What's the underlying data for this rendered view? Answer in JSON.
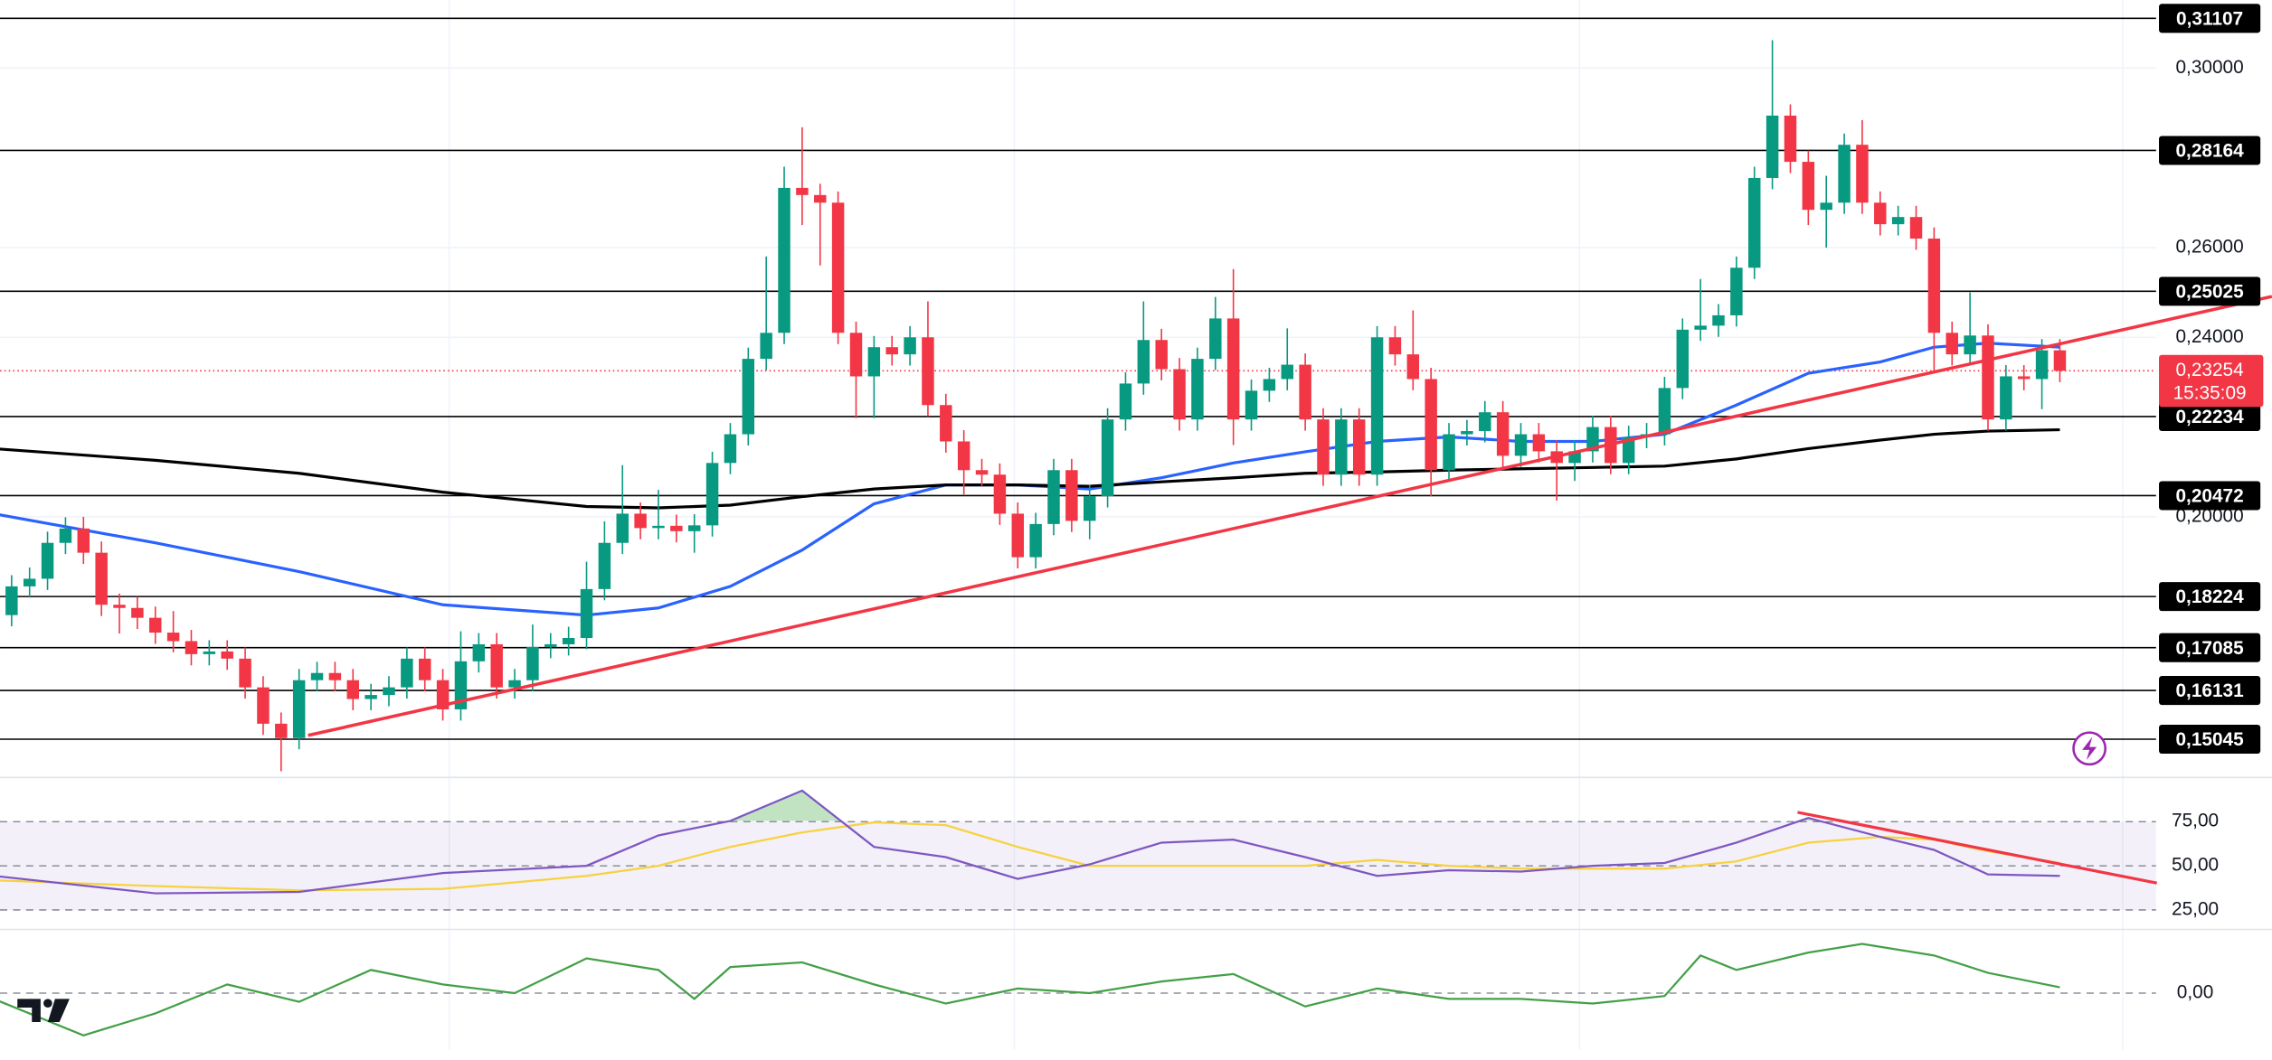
{
  "chart_data": [
    {
      "type": "candlestick",
      "up_color": "#089981",
      "down_color": "#f23645",
      "ylim": [
        0.14258,
        0.31516
      ],
      "yticks": [
        {
          "value": 0.3,
          "label": "0,30000"
        },
        {
          "value": 0.26,
          "label": "0,26000"
        },
        {
          "value": 0.24,
          "label": "0,24000"
        },
        {
          "value": 0.2,
          "label": "0,20000"
        }
      ],
      "grid": true,
      "open": [
        0.1781,
        0.1845,
        0.1862,
        0.1942,
        0.1974,
        0.192,
        0.1804,
        0.1797,
        0.1775,
        0.1742,
        0.1723,
        0.1694,
        0.17,
        0.1684,
        0.162,
        0.1539,
        0.1507,
        0.1636,
        0.1652,
        0.1636,
        0.1594,
        0.1603,
        0.162,
        0.1684,
        0.1636,
        0.1571,
        0.1678,
        0.1716,
        0.162,
        0.1636,
        0.171,
        0.1716,
        0.173,
        0.1839,
        0.1942,
        0.2007,
        0.1975,
        0.198,
        0.1968,
        0.1981,
        0.212,
        0.2184,
        0.2352,
        0.241,
        0.2733,
        0.2717,
        0.27,
        0.241,
        0.2313,
        0.2378,
        0.2362,
        0.24,
        0.2249,
        0.2168,
        0.2104,
        0.2094,
        0.2007,
        0.191,
        0.1984,
        0.2104,
        0.1991,
        0.2046,
        0.2217,
        0.2297,
        0.2394,
        0.2329,
        0.2217,
        0.2352,
        0.2442,
        0.2217,
        0.2281,
        0.2307,
        0.2339,
        0.2217,
        0.2094,
        0.2217,
        0.2094,
        0.24,
        0.2362,
        0.2307,
        0.2104,
        0.2184,
        0.2191,
        0.2233,
        0.2136,
        0.2184,
        0.2146,
        0.212,
        0.2146,
        0.22,
        0.212,
        0.2178,
        0.2184,
        0.2287,
        0.2417,
        0.2426,
        0.2449,
        0.2555,
        0.2755,
        0.2894,
        0.2791,
        0.2684,
        0.27,
        0.2829,
        0.27,
        0.2652,
        0.2668,
        0.262,
        0.241,
        0.2362,
        0.2404,
        0.2217,
        0.2313,
        0.2307,
        0.2371
      ],
      "high": [
        0.187,
        0.1887,
        0.1967,
        0.1999,
        0.2,
        0.1945,
        0.1829,
        0.1822,
        0.18,
        0.179,
        0.1748,
        0.1725,
        0.1725,
        0.1709,
        0.1645,
        0.1564,
        0.1661,
        0.1677,
        0.1677,
        0.1661,
        0.1628,
        0.1645,
        0.1709,
        0.1709,
        0.1661,
        0.1745,
        0.1741,
        0.1741,
        0.1661,
        0.176,
        0.1741,
        0.1755,
        0.19,
        0.199,
        0.2115,
        0.2032,
        0.206,
        0.2005,
        0.2006,
        0.2145,
        0.2209,
        0.2377,
        0.258,
        0.278,
        0.2868,
        0.2742,
        0.2725,
        0.2435,
        0.2403,
        0.2403,
        0.2425,
        0.248,
        0.2274,
        0.2193,
        0.2129,
        0.2119,
        0.2032,
        0.2009,
        0.2129,
        0.2129,
        0.2071,
        0.2242,
        0.2322,
        0.248,
        0.2419,
        0.2354,
        0.2377,
        0.249,
        0.2552,
        0.2306,
        0.2332,
        0.242,
        0.2364,
        0.2242,
        0.2242,
        0.2242,
        0.2425,
        0.2425,
        0.246,
        0.2332,
        0.2209,
        0.2216,
        0.2258,
        0.2258,
        0.2209,
        0.2209,
        0.2171,
        0.2171,
        0.2225,
        0.2225,
        0.2203,
        0.2209,
        0.2312,
        0.2442,
        0.253,
        0.2474,
        0.258,
        0.278,
        0.3062,
        0.2919,
        0.2816,
        0.276,
        0.2854,
        0.2884,
        0.2725,
        0.2693,
        0.2693,
        0.2645,
        0.2435,
        0.25,
        0.2429,
        0.2338,
        0.2338,
        0.2396,
        0.2396
      ],
      "low": [
        0.1756,
        0.182,
        0.1837,
        0.1917,
        0.1895,
        0.1779,
        0.174,
        0.175,
        0.1717,
        0.1698,
        0.1669,
        0.1669,
        0.1659,
        0.1595,
        0.1514,
        0.1433,
        0.1482,
        0.1611,
        0.1611,
        0.1569,
        0.1569,
        0.1578,
        0.1595,
        0.1611,
        0.1546,
        0.1546,
        0.1653,
        0.1595,
        0.1595,
        0.1611,
        0.1685,
        0.1691,
        0.1705,
        0.1814,
        0.1917,
        0.195,
        0.195,
        0.1943,
        0.192,
        0.1956,
        0.2095,
        0.2159,
        0.2327,
        0.2385,
        0.265,
        0.256,
        0.2385,
        0.222,
        0.222,
        0.2337,
        0.2337,
        0.2224,
        0.2143,
        0.205,
        0.2069,
        0.1982,
        0.1885,
        0.1885,
        0.1959,
        0.1966,
        0.195,
        0.2021,
        0.2192,
        0.2272,
        0.2304,
        0.2192,
        0.2192,
        0.2327,
        0.216,
        0.2192,
        0.2256,
        0.2282,
        0.2192,
        0.2069,
        0.2069,
        0.2069,
        0.2069,
        0.2337,
        0.2282,
        0.2046,
        0.2079,
        0.2159,
        0.2166,
        0.2111,
        0.2111,
        0.2121,
        0.2036,
        0.208,
        0.2121,
        0.2095,
        0.2095,
        0.2153,
        0.2159,
        0.2262,
        0.2392,
        0.2401,
        0.2424,
        0.253,
        0.273,
        0.2766,
        0.265,
        0.26,
        0.2675,
        0.2675,
        0.2627,
        0.2627,
        0.2595,
        0.232,
        0.2337,
        0.2337,
        0.2192,
        0.2192,
        0.2282,
        0.224,
        0.23
      ],
      "close": [
        0.1845,
        0.1862,
        0.1942,
        0.1974,
        0.192,
        0.1804,
        0.1797,
        0.1775,
        0.1742,
        0.1723,
        0.1694,
        0.17,
        0.1684,
        0.162,
        0.1539,
        0.1507,
        0.1636,
        0.1652,
        0.1636,
        0.1594,
        0.1603,
        0.162,
        0.1684,
        0.1636,
        0.1571,
        0.1678,
        0.1716,
        0.162,
        0.1636,
        0.171,
        0.1716,
        0.173,
        0.1839,
        0.1942,
        0.2007,
        0.1975,
        0.198,
        0.1968,
        0.1981,
        0.212,
        0.2184,
        0.2352,
        0.241,
        0.2733,
        0.2717,
        0.27,
        0.241,
        0.2313,
        0.2378,
        0.2362,
        0.24,
        0.2249,
        0.2168,
        0.2104,
        0.2094,
        0.2007,
        0.191,
        0.1984,
        0.2104,
        0.1991,
        0.2046,
        0.2217,
        0.2297,
        0.2394,
        0.2329,
        0.2217,
        0.2352,
        0.2442,
        0.2217,
        0.2281,
        0.2307,
        0.2339,
        0.2217,
        0.2094,
        0.2217,
        0.2094,
        0.24,
        0.2362,
        0.2307,
        0.2104,
        0.2184,
        0.2191,
        0.2233,
        0.2136,
        0.2184,
        0.2146,
        0.212,
        0.2146,
        0.22,
        0.212,
        0.2178,
        0.2184,
        0.2287,
        0.2417,
        0.2426,
        0.2449,
        0.2555,
        0.2755,
        0.2894,
        0.2791,
        0.2684,
        0.27,
        0.2829,
        0.27,
        0.2652,
        0.2668,
        0.262,
        0.241,
        0.2362,
        0.2404,
        0.2217,
        0.2313,
        0.2307,
        0.2371,
        0.23254
      ],
      "series": [
        {
          "color": "#2962ff",
          "x": [
            -1,
            8,
            16,
            24,
            32,
            36,
            40,
            44,
            48,
            52,
            56,
            60,
            64,
            68,
            72,
            76,
            80,
            84,
            88,
            92,
            96,
            100,
            104,
            107,
            110,
            114
          ],
          "values": [
            0.2007,
            0.1942,
            0.1878,
            0.1804,
            0.1781,
            0.1797,
            0.1845,
            0.1926,
            0.2029,
            0.2071,
            0.2071,
            0.2062,
            0.2087,
            0.212,
            0.2145,
            0.2168,
            0.2178,
            0.2168,
            0.2168,
            0.2184,
            0.2249,
            0.232,
            0.2345,
            0.2378,
            0.2387,
            0.2378
          ]
        },
        {
          "color": "#000000",
          "x": [
            -1,
            8,
            16,
            24,
            32,
            36,
            40,
            44,
            48,
            52,
            56,
            60,
            64,
            68,
            72,
            76,
            80,
            84,
            88,
            92,
            96,
            100,
            104,
            107,
            110,
            114
          ],
          "values": [
            0.2152,
            0.2126,
            0.2097,
            0.2055,
            0.2023,
            0.202,
            0.2026,
            0.2045,
            0.2062,
            0.2071,
            0.2071,
            0.2068,
            0.2078,
            0.2087,
            0.2097,
            0.21,
            0.2104,
            0.2107,
            0.211,
            0.2113,
            0.2129,
            0.2152,
            0.2171,
            0.2184,
            0.2191,
            0.2194
          ]
        }
      ],
      "trendlines": [
        {
          "color": "#f23645",
          "x": [
            16.5,
            125.8
          ],
          "values": [
            0.1513,
            0.2491
          ]
        }
      ],
      "levels": [
        {
          "value": 0.31107,
          "label": "0,31107"
        },
        {
          "value": 0.28164,
          "label": "0,28164"
        },
        {
          "value": 0.25025,
          "label": "0,25025"
        },
        {
          "value": 0.22234,
          "label": "0,22234"
        },
        {
          "value": 0.20472,
          "label": "0,20472"
        },
        {
          "value": 0.18224,
          "label": "0,18224"
        },
        {
          "value": 0.17085,
          "label": "0,17085"
        },
        {
          "value": 0.16131,
          "label": "0,16131"
        },
        {
          "value": 0.15045,
          "label": "0,15045"
        }
      ],
      "current_price": {
        "value": 0.23254,
        "label": "0,23254",
        "countdown": "15:35:09",
        "color": "#f23645"
      }
    },
    {
      "type": "line",
      "ylim": [
        15.6,
        97.6
      ],
      "yticks": [
        {
          "value": 75,
          "label": "75,00"
        },
        {
          "value": 50,
          "label": "50,00"
        },
        {
          "value": 25,
          "label": "25,00"
        }
      ],
      "band_color": "#7e57c2",
      "overbought_color": "#4caf50",
      "series": [
        {
          "color": "#7e57c2",
          "x": [
            -1,
            8,
            16,
            24,
            32,
            36,
            40,
            44,
            48,
            52,
            56,
            60,
            64,
            68,
            72,
            76,
            80,
            84,
            88,
            92,
            96,
            100,
            104,
            107,
            110,
            114
          ],
          "values": [
            44.3,
            34.4,
            35.2,
            45.9,
            50,
            67.2,
            75.4,
            92.6,
            60.7,
            54.9,
            42.6,
            50.8,
            63.1,
            64.8,
            54.9,
            44.3,
            47.5,
            46.7,
            50,
            51.6,
            63.1,
            77.1,
            66.4,
            59,
            45.1,
            44.3
          ]
        },
        {
          "color": "#f7d23e",
          "x": [
            -1,
            8,
            16,
            24,
            32,
            36,
            40,
            44,
            48,
            52,
            56,
            60,
            64,
            68,
            72,
            76,
            80,
            84,
            88,
            92,
            96,
            100,
            104,
            107,
            110,
            114
          ],
          "values": [
            41.8,
            38.5,
            36.1,
            36.9,
            44.3,
            50,
            60.7,
            68.9,
            74.6,
            73,
            60.7,
            50,
            50,
            50,
            50,
            53.3,
            50,
            48.4,
            48.4,
            48.4,
            52.5,
            63.1,
            66.4,
            64.8,
            58.2,
            51.6
          ]
        }
      ],
      "trendlines": [
        {
          "color": "#f23645",
          "x": [
            99.4,
            119.4
          ],
          "values": [
            80.3,
            40.2
          ]
        }
      ]
    },
    {
      "type": "line",
      "ylim": [
        -0.975,
        1.025
      ],
      "yticks": [
        {
          "value": 0,
          "label": "0,00"
        }
      ],
      "series": [
        {
          "color": "#43a047",
          "x": [
            -1,
            4,
            8,
            12,
            16,
            20,
            24,
            28,
            32,
            36,
            38,
            40,
            44,
            48,
            52,
            56,
            60,
            64,
            68,
            72,
            76,
            80,
            84,
            88,
            92,
            94,
            96,
            100,
            103,
            107,
            110,
            114
          ],
          "values": [
            -0.1,
            -0.73,
            -0.35,
            0.15,
            -0.15,
            0.4,
            0.15,
            0,
            0.6,
            0.4,
            -0.1,
            0.45,
            0.53,
            0.15,
            -0.18,
            0.08,
            0,
            0.2,
            0.33,
            -0.23,
            0.08,
            -0.1,
            -0.1,
            -0.18,
            -0.05,
            0.65,
            0.4,
            0.7,
            0.85,
            0.65,
            0.35,
            0.1
          ]
        }
      ]
    }
  ]
}
